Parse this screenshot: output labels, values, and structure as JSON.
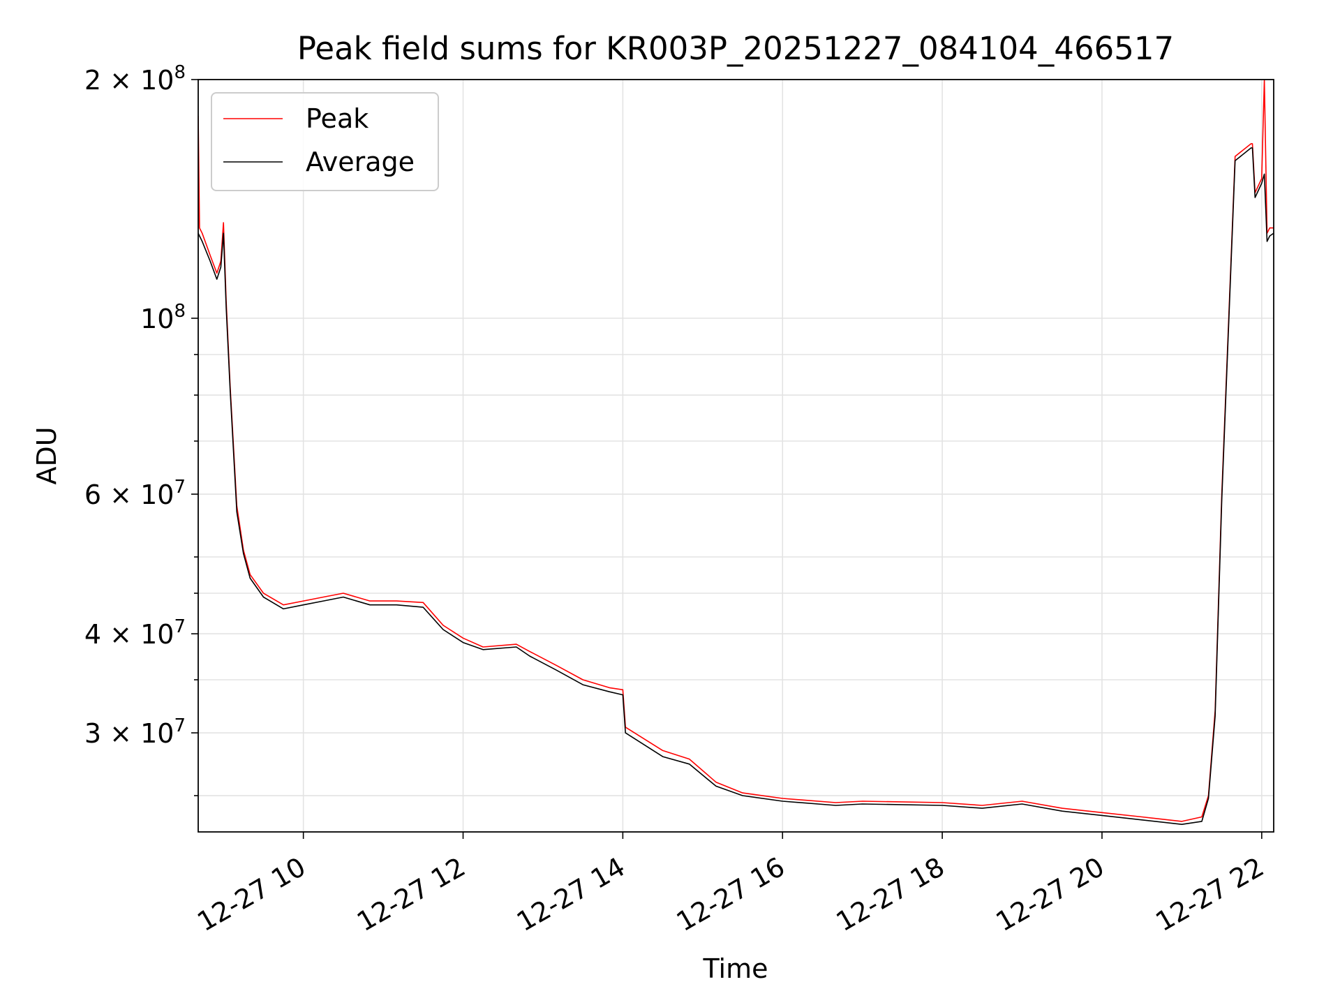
{
  "chart_data": {
    "type": "line",
    "title": "Peak field sums for KR003P_20251227_084104_466517",
    "xlabel": "Time",
    "ylabel": "ADU",
    "yscale": "log",
    "grid": true,
    "legend_position": "top-left",
    "xlim": [
      "2025-12-27 08:41",
      "2025-12-27 22:09"
    ],
    "ylim": [
      22500000,
      200000000
    ],
    "x_ticks": [
      "12-27 10",
      "12-27 12",
      "12-27 14",
      "12-27 16",
      "12-27 18",
      "12-27 20",
      "12-27 22"
    ],
    "y_ticks": [
      {
        "value": 200000000,
        "mantissa": "2",
        "exp": "8"
      },
      {
        "value": 100000000,
        "mantissa": "",
        "exp": "8"
      },
      {
        "value": 60000000,
        "mantissa": "6",
        "exp": "7"
      },
      {
        "value": 40000000,
        "mantissa": "4",
        "exp": "7"
      },
      {
        "value": 30000000,
        "mantissa": "3",
        "exp": "7"
      }
    ],
    "series": [
      {
        "name": "Peak",
        "color": "#ff0000",
        "x": [
          "2025-12-27 08:41",
          "2025-12-27 08:42",
          "2025-12-27 08:44",
          "2025-12-27 08:50",
          "2025-12-27 08:55",
          "2025-12-27 08:58",
          "2025-12-27 09:00",
          "2025-12-27 09:02",
          "2025-12-27 09:05",
          "2025-12-27 09:10",
          "2025-12-27 09:15",
          "2025-12-27 09:20",
          "2025-12-27 09:30",
          "2025-12-27 09:45",
          "2025-12-27 10:00",
          "2025-12-27 10:15",
          "2025-12-27 10:30",
          "2025-12-27 10:50",
          "2025-12-27 11:10",
          "2025-12-27 11:30",
          "2025-12-27 11:45",
          "2025-12-27 12:00",
          "2025-12-27 12:15",
          "2025-12-27 12:40",
          "2025-12-27 12:50",
          "2025-12-27 13:10",
          "2025-12-27 13:30",
          "2025-12-27 13:50",
          "2025-12-27 14:00",
          "2025-12-27 14:02",
          "2025-12-27 14:30",
          "2025-12-27 14:50",
          "2025-12-27 15:10",
          "2025-12-27 15:30",
          "2025-12-27 16:00",
          "2025-12-27 16:40",
          "2025-12-27 17:00",
          "2025-12-27 18:00",
          "2025-12-27 18:30",
          "2025-12-27 19:00",
          "2025-12-27 19:30",
          "2025-12-27 20:00",
          "2025-12-27 20:30",
          "2025-12-27 21:00",
          "2025-12-27 21:15",
          "2025-12-27 21:20",
          "2025-12-27 21:25",
          "2025-12-27 21:30",
          "2025-12-27 21:40",
          "2025-12-27 21:52",
          "2025-12-27 21:53",
          "2025-12-27 21:55",
          "2025-12-27 22:00",
          "2025-12-27 22:02",
          "2025-12-27 22:04",
          "2025-12-27 22:06",
          "2025-12-27 22:09"
        ],
        "y": [
          180000000,
          130000000,
          128000000,
          120000000,
          114000000,
          118000000,
          132000000,
          105000000,
          82000000,
          58000000,
          51000000,
          47500000,
          45000000,
          43500000,
          44000000,
          44500000,
          45000000,
          44000000,
          44000000,
          43800000,
          41000000,
          39500000,
          38500000,
          38800000,
          38000000,
          36500000,
          35000000,
          34200000,
          34000000,
          30500000,
          28500000,
          27800000,
          26000000,
          25200000,
          24800000,
          24500000,
          24600000,
          24500000,
          24300000,
          24600000,
          24100000,
          23800000,
          23500000,
          23200000,
          23500000,
          25000000,
          32000000,
          60000000,
          160000000,
          166000000,
          166000000,
          144000000,
          150000000,
          200000000,
          128000000,
          130000000,
          130000000
        ]
      },
      {
        "name": "Average",
        "color": "#000000",
        "x": [
          "2025-12-27 08:41",
          "2025-12-27 08:42",
          "2025-12-27 08:44",
          "2025-12-27 08:50",
          "2025-12-27 08:55",
          "2025-12-27 08:58",
          "2025-12-27 09:00",
          "2025-12-27 09:02",
          "2025-12-27 09:05",
          "2025-12-27 09:10",
          "2025-12-27 09:15",
          "2025-12-27 09:20",
          "2025-12-27 09:30",
          "2025-12-27 09:45",
          "2025-12-27 10:00",
          "2025-12-27 10:15",
          "2025-12-27 10:30",
          "2025-12-27 10:50",
          "2025-12-27 11:10",
          "2025-12-27 11:30",
          "2025-12-27 11:45",
          "2025-12-27 12:00",
          "2025-12-27 12:15",
          "2025-12-27 12:40",
          "2025-12-27 12:50",
          "2025-12-27 13:10",
          "2025-12-27 13:30",
          "2025-12-27 13:50",
          "2025-12-27 14:00",
          "2025-12-27 14:02",
          "2025-12-27 14:30",
          "2025-12-27 14:50",
          "2025-12-27 15:10",
          "2025-12-27 15:30",
          "2025-12-27 16:00",
          "2025-12-27 16:40",
          "2025-12-27 17:00",
          "2025-12-27 18:00",
          "2025-12-27 18:30",
          "2025-12-27 19:00",
          "2025-12-27 19:30",
          "2025-12-27 20:00",
          "2025-12-27 20:30",
          "2025-12-27 21:00",
          "2025-12-27 21:15",
          "2025-12-27 21:20",
          "2025-12-27 21:25",
          "2025-12-27 21:30",
          "2025-12-27 21:40",
          "2025-12-27 21:52",
          "2025-12-27 21:53",
          "2025-12-27 21:55",
          "2025-12-27 22:00",
          "2025-12-27 22:02",
          "2025-12-27 22:04",
          "2025-12-27 22:06",
          "2025-12-27 22:09"
        ],
        "y": [
          128000000,
          127000000,
          125000000,
          118000000,
          112000000,
          116000000,
          128000000,
          103000000,
          81000000,
          57000000,
          50500000,
          47000000,
          44500000,
          43000000,
          43500000,
          44000000,
          44500000,
          43500000,
          43500000,
          43200000,
          40500000,
          39000000,
          38200000,
          38500000,
          37500000,
          36000000,
          34500000,
          33800000,
          33500000,
          30000000,
          28000000,
          27400000,
          25700000,
          25000000,
          24600000,
          24300000,
          24400000,
          24300000,
          24100000,
          24400000,
          23900000,
          23600000,
          23300000,
          23000000,
          23200000,
          24800000,
          31500000,
          59000000,
          158000000,
          164000000,
          164000000,
          142000000,
          148000000,
          152000000,
          125000000,
          127000000,
          128000000
        ]
      }
    ]
  }
}
